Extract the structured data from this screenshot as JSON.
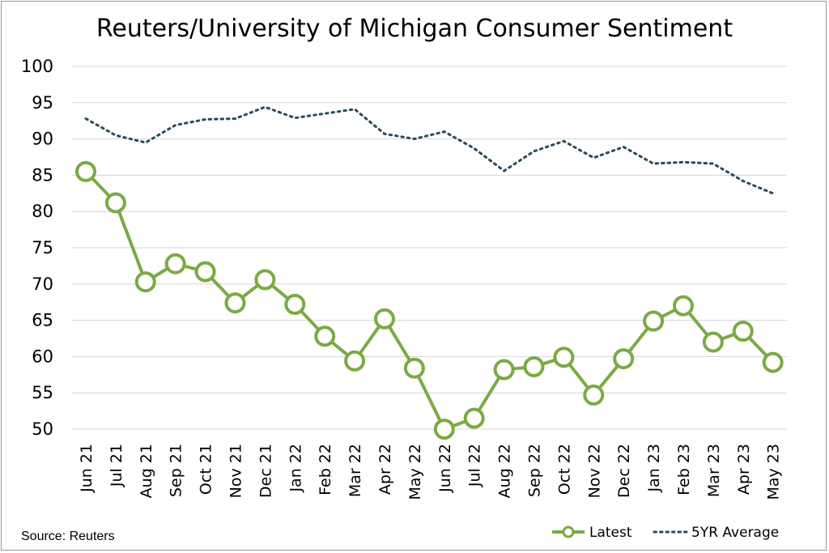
{
  "chart_data": {
    "type": "line",
    "title": "Reuters/University of Michigan Consumer Sentiment",
    "xlabel": "",
    "ylabel": "",
    "ylim": [
      50,
      100
    ],
    "yticks": [
      50,
      55,
      60,
      65,
      70,
      75,
      80,
      85,
      90,
      95,
      100
    ],
    "grid": "horizontal",
    "legend_position": "bottom-right",
    "categories": [
      "Jun 21",
      "Jul 21",
      "Aug 21",
      "Sep 21",
      "Oct 21",
      "Nov 21",
      "Dec 21",
      "Jan 22",
      "Feb 22",
      "Mar 22",
      "Apr 22",
      "May 22",
      "Jun 22",
      "Jul 22",
      "Aug 22",
      "Sep 22",
      "Oct 22",
      "Nov 22",
      "Dec 22",
      "Jan 23",
      "Feb 23",
      "Mar 23",
      "Apr 23",
      "May 23"
    ],
    "series": [
      {
        "name": "Latest",
        "color": "#7aaa45",
        "style": "solid-with-circle-markers",
        "values": [
          85.5,
          81.2,
          70.3,
          72.8,
          71.7,
          67.4,
          70.6,
          67.2,
          62.8,
          59.4,
          65.2,
          58.4,
          50.0,
          51.5,
          58.2,
          58.6,
          59.9,
          54.7,
          59.7,
          64.9,
          67.0,
          62.0,
          63.5,
          59.2
        ]
      },
      {
        "name": "5YR Average",
        "color": "#2b4a5a",
        "style": "dotted",
        "values": [
          92.8,
          90.5,
          89.5,
          91.9,
          92.7,
          92.8,
          94.4,
          92.9,
          93.5,
          94.1,
          90.7,
          90.0,
          91.0,
          88.7,
          85.6,
          88.3,
          89.7,
          87.4,
          88.9,
          86.6,
          86.8,
          86.6,
          84.2,
          82.5
        ]
      }
    ],
    "source": "Source: Reuters"
  }
}
